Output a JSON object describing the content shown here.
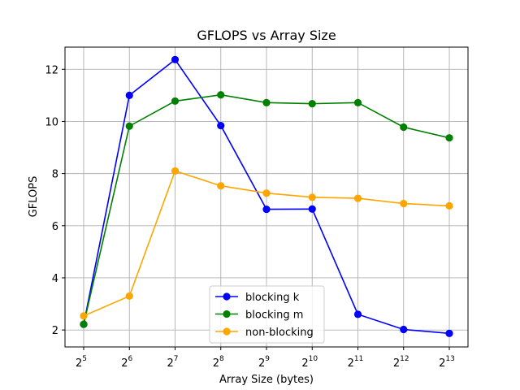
{
  "chart_data": {
    "type": "line",
    "title": "GFLOPS vs Array Size",
    "xlabel": "Array Size (bytes)",
    "ylabel": "GFLOPS",
    "x_scale": "log2",
    "x": [
      32,
      64,
      128,
      256,
      512,
      1024,
      2048,
      4096,
      8192
    ],
    "x_tick_labels": [
      {
        "base": "2",
        "exp": "5"
      },
      {
        "base": "2",
        "exp": "6"
      },
      {
        "base": "2",
        "exp": "7"
      },
      {
        "base": "2",
        "exp": "8"
      },
      {
        "base": "2",
        "exp": "9"
      },
      {
        "base": "2",
        "exp": "10"
      },
      {
        "base": "2",
        "exp": "11"
      },
      {
        "base": "2",
        "exp": "12"
      },
      {
        "base": "2",
        "exp": "13"
      }
    ],
    "yticks": [
      2,
      4,
      6,
      8,
      10,
      12
    ],
    "ylim": [
      1.35,
      12.85
    ],
    "grid": true,
    "legend_position": "lower center",
    "series": [
      {
        "name": "blocking k",
        "color": "#0000ff",
        "values": [
          2.22,
          11.0,
          12.37,
          9.84,
          6.63,
          6.64,
          2.6,
          2.02,
          1.87
        ]
      },
      {
        "name": "blocking m",
        "color": "#008000",
        "values": [
          2.22,
          9.82,
          10.78,
          11.02,
          10.72,
          10.68,
          10.72,
          9.78,
          9.37
        ]
      },
      {
        "name": "non-blocking",
        "color": "#ffa500",
        "values": [
          2.54,
          3.3,
          8.1,
          7.53,
          7.25,
          7.09,
          7.05,
          6.85,
          6.76
        ]
      }
    ]
  }
}
